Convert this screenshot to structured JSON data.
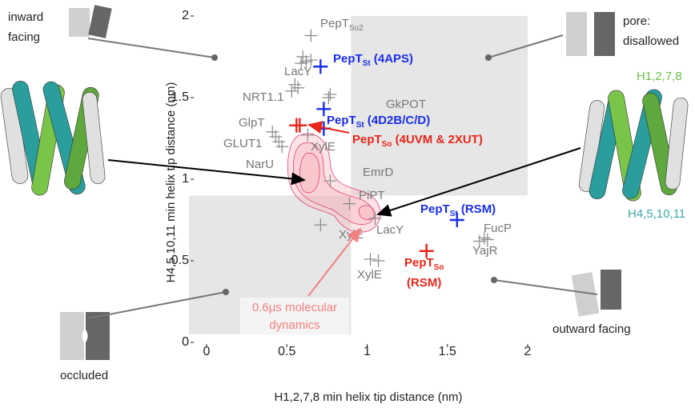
{
  "chart_data": {
    "type": "scatter",
    "xlabel": "H1,2,7,8 min helix tip distance (nm)",
    "ylabel": "H4,5,10,11 min helix tip distance (nm)",
    "xlim": [
      -0.12,
      2.05
    ],
    "ylim": [
      -0.05,
      2.05
    ],
    "xticks": [
      0,
      0.5,
      1,
      1.5,
      2
    ],
    "yticks": [
      0,
      0.5,
      1,
      1.5,
      2
    ],
    "regions": [
      {
        "color": "#e6e6e6",
        "x": [
          0.9,
          2
        ],
        "y": [
          0.9,
          2
        ]
      },
      {
        "color": "#e6e6e6",
        "x": [
          -0.11,
          0.9
        ],
        "y": [
          0.05,
          0.9
        ]
      }
    ],
    "series": [
      {
        "color": "#888888",
        "x": [
          0.65,
          0.59,
          0.62,
          0.65,
          0.6,
          0.53,
          0.57,
          0.55,
          0.76,
          0.77,
          0.41,
          0.43,
          0.45,
          0.47,
          0.63,
          0.77,
          0.89,
          0.71,
          1.05,
          1.02,
          1.07,
          1.73,
          1.75,
          1.7
        ],
        "y": [
          1.88,
          1.71,
          1.72,
          1.73,
          1.75,
          1.54,
          1.56,
          1.58,
          1.5,
          1.52,
          1.29,
          1.26,
          1.23,
          1.2,
          1.27,
          0.99,
          0.85,
          0.72,
          0.76,
          0.51,
          0.5,
          0.64,
          0.63,
          0.62
        ]
      },
      {
        "color": "#1a2ee8",
        "x": [
          0.71,
          0.73,
          0.73,
          1.56
        ],
        "y": [
          1.69,
          1.43,
          1.31,
          0.75
        ]
      },
      {
        "color": "#e8261a",
        "x": [
          0.56,
          0.58,
          1.37
        ],
        "y": [
          1.33,
          1.33,
          0.56
        ]
      }
    ],
    "labels": [
      {
        "text": "PepT",
        "sub": "So2"
      },
      {
        "text": "LacY"
      },
      {
        "text": "PepT",
        "sub": "St",
        "suffix": " (4APS)"
      },
      {
        "text": "NRT1.1"
      },
      {
        "text": "GkPOT"
      },
      {
        "text": "GlpT"
      },
      {
        "text": "PepT",
        "sub": "St",
        "suffix": " (4D2B/C/D)"
      },
      {
        "text": "PepT",
        "sub": "So",
        "suffix": " (4UVM & 2XUT)"
      },
      {
        "text": "GLUT1"
      },
      {
        "text": "XylE"
      },
      {
        "text": "NarU"
      },
      {
        "text": "EmrD"
      },
      {
        "text": "PiPT"
      },
      {
        "text": "XylE"
      },
      {
        "text": "LacY"
      },
      {
        "text": "PepT",
        "sub": "St",
        "suffix": " (RSM)"
      },
      {
        "text": "FucP"
      },
      {
        "text": "YajR"
      },
      {
        "text": "PepT",
        "sub": "So"
      },
      {
        "text": "(RSM)"
      },
      {
        "text": "XylE"
      }
    ],
    "annotations": {
      "inward_line1": "inward",
      "inward_line2": "facing",
      "pore_line1": "pore:",
      "pore_line2": "disallowed",
      "occluded": "occluded",
      "outward": "outward facing",
      "helix_green": "H1,2,7,8",
      "helix_teal": "H4,5,10,11",
      "md_line1": "0.6μs molecular",
      "md_line2": "dynamics"
    }
  }
}
